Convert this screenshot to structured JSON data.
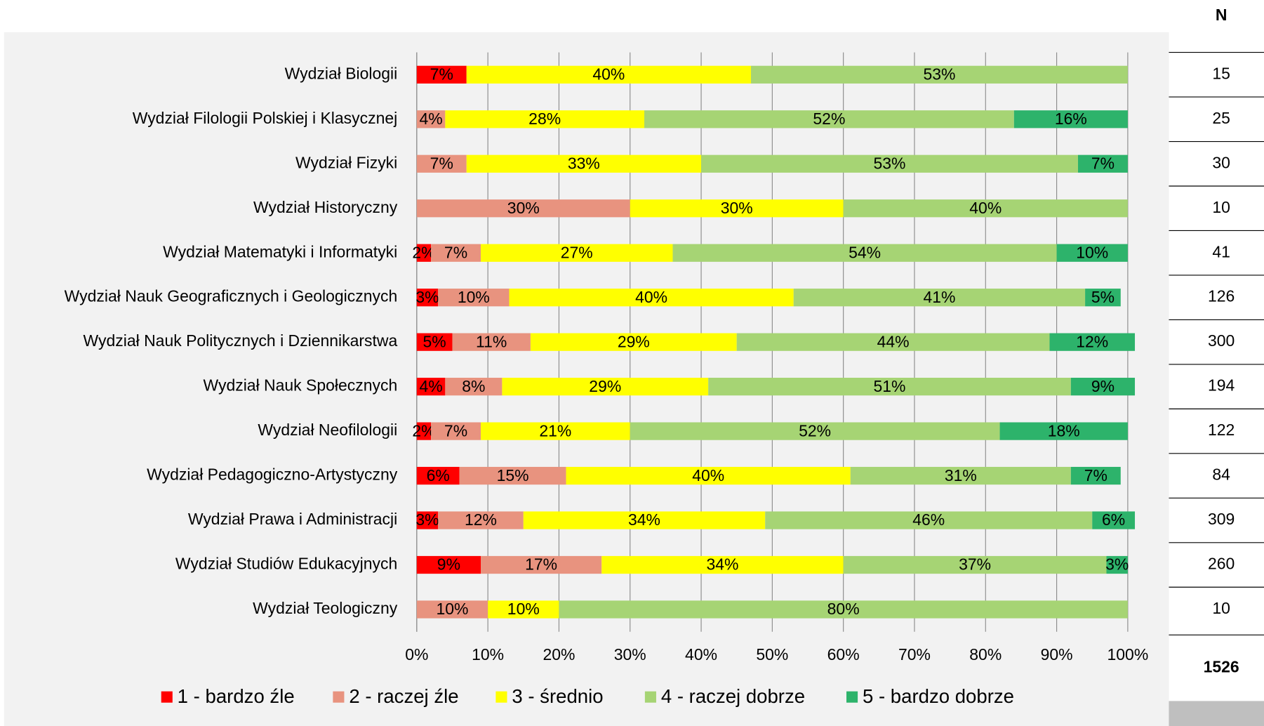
{
  "chart_data": {
    "type": "stacked_barh",
    "categories": [
      "Wydział Biologii",
      "Wydział Filologii Polskiej i Klasycznej",
      "Wydział Fizyki",
      "Wydział Historyczny",
      "Wydział Matematyki i Informatyki",
      "Wydział Nauk Geograficznych i Geologicznych",
      "Wydział Nauk Politycznych i Dziennikarstwa",
      "Wydział Nauk Społecznych",
      "Wydział Neofilologii",
      "Wydział Pedagogiczno-Artystyczny",
      "Wydział Prawa i Administracji",
      "Wydział Studiów Edukacyjnych",
      "Wydział Teologiczny"
    ],
    "series": [
      {
        "name": "1 - bardzo źle",
        "color": "#ff0000",
        "values": [
          7,
          null,
          null,
          null,
          2,
          3,
          5,
          4,
          2,
          6,
          3,
          9,
          null
        ],
        "value_labels": [
          "7%",
          null,
          null,
          null,
          "2%",
          "3%",
          "5%",
          "4%",
          "2%",
          "6%",
          "3%",
          "9%",
          null
        ]
      },
      {
        "name": "2 - raczej źle",
        "color": "#e8937f",
        "values": [
          null,
          4,
          7,
          30,
          7,
          10,
          11,
          8,
          7,
          15,
          12,
          17,
          10
        ],
        "value_labels": [
          null,
          "4%",
          "7%",
          "30%",
          "7%",
          "10%",
          "11%",
          "8%",
          "7%",
          "15%",
          "12%",
          "17%",
          "10%"
        ]
      },
      {
        "name": "3 - średnio",
        "color": "#ffff00",
        "values": [
          40,
          28,
          33,
          30,
          27,
          40,
          29,
          29,
          21,
          40,
          34,
          34,
          10
        ],
        "value_labels": [
          "40%",
          "28%",
          "33%",
          "30%",
          "27%",
          "40%",
          "29%",
          "29%",
          "21%",
          "40%",
          "34%",
          "34%",
          "10%"
        ]
      },
      {
        "name": "4 - raczej dobrze",
        "color": "#a6d474",
        "values": [
          53,
          52,
          53,
          40,
          54,
          41,
          44,
          51,
          52,
          31,
          46,
          37,
          80
        ],
        "value_labels": [
          "53%",
          "52%",
          "53%",
          "40%",
          "54%",
          "41%",
          "44%",
          "51%",
          "52%",
          "31%",
          "46%",
          "37%",
          "80%"
        ]
      },
      {
        "name": "5 - bardzo dobrze",
        "color": "#2db36b",
        "values": [
          null,
          16,
          7,
          null,
          10,
          5,
          12,
          9,
          18,
          7,
          6,
          3,
          null
        ],
        "value_labels": [
          null,
          "16%",
          "7%",
          null,
          "10%",
          "5%",
          "12%",
          "9%",
          "18%",
          "7%",
          "6%",
          "3%",
          null
        ]
      }
    ],
    "xlim": [
      0,
      100
    ],
    "xticks": [
      {
        "value": 0,
        "label": "0%"
      },
      {
        "value": 10,
        "label": "10%"
      },
      {
        "value": 20,
        "label": "20%"
      },
      {
        "value": 30,
        "label": "30%"
      },
      {
        "value": 40,
        "label": "40%"
      },
      {
        "value": 50,
        "label": "50%"
      },
      {
        "value": 60,
        "label": "60%"
      },
      {
        "value": 70,
        "label": "70%"
      },
      {
        "value": 80,
        "label": "80%"
      },
      {
        "value": 90,
        "label": "90%"
      },
      {
        "value": 100,
        "label": "100%"
      }
    ],
    "grid": true,
    "legend": "bottom",
    "n_header": "N",
    "n_values": [
      15,
      25,
      30,
      10,
      41,
      126,
      300,
      194,
      122,
      84,
      309,
      260,
      10
    ],
    "n_total": 1526
  }
}
